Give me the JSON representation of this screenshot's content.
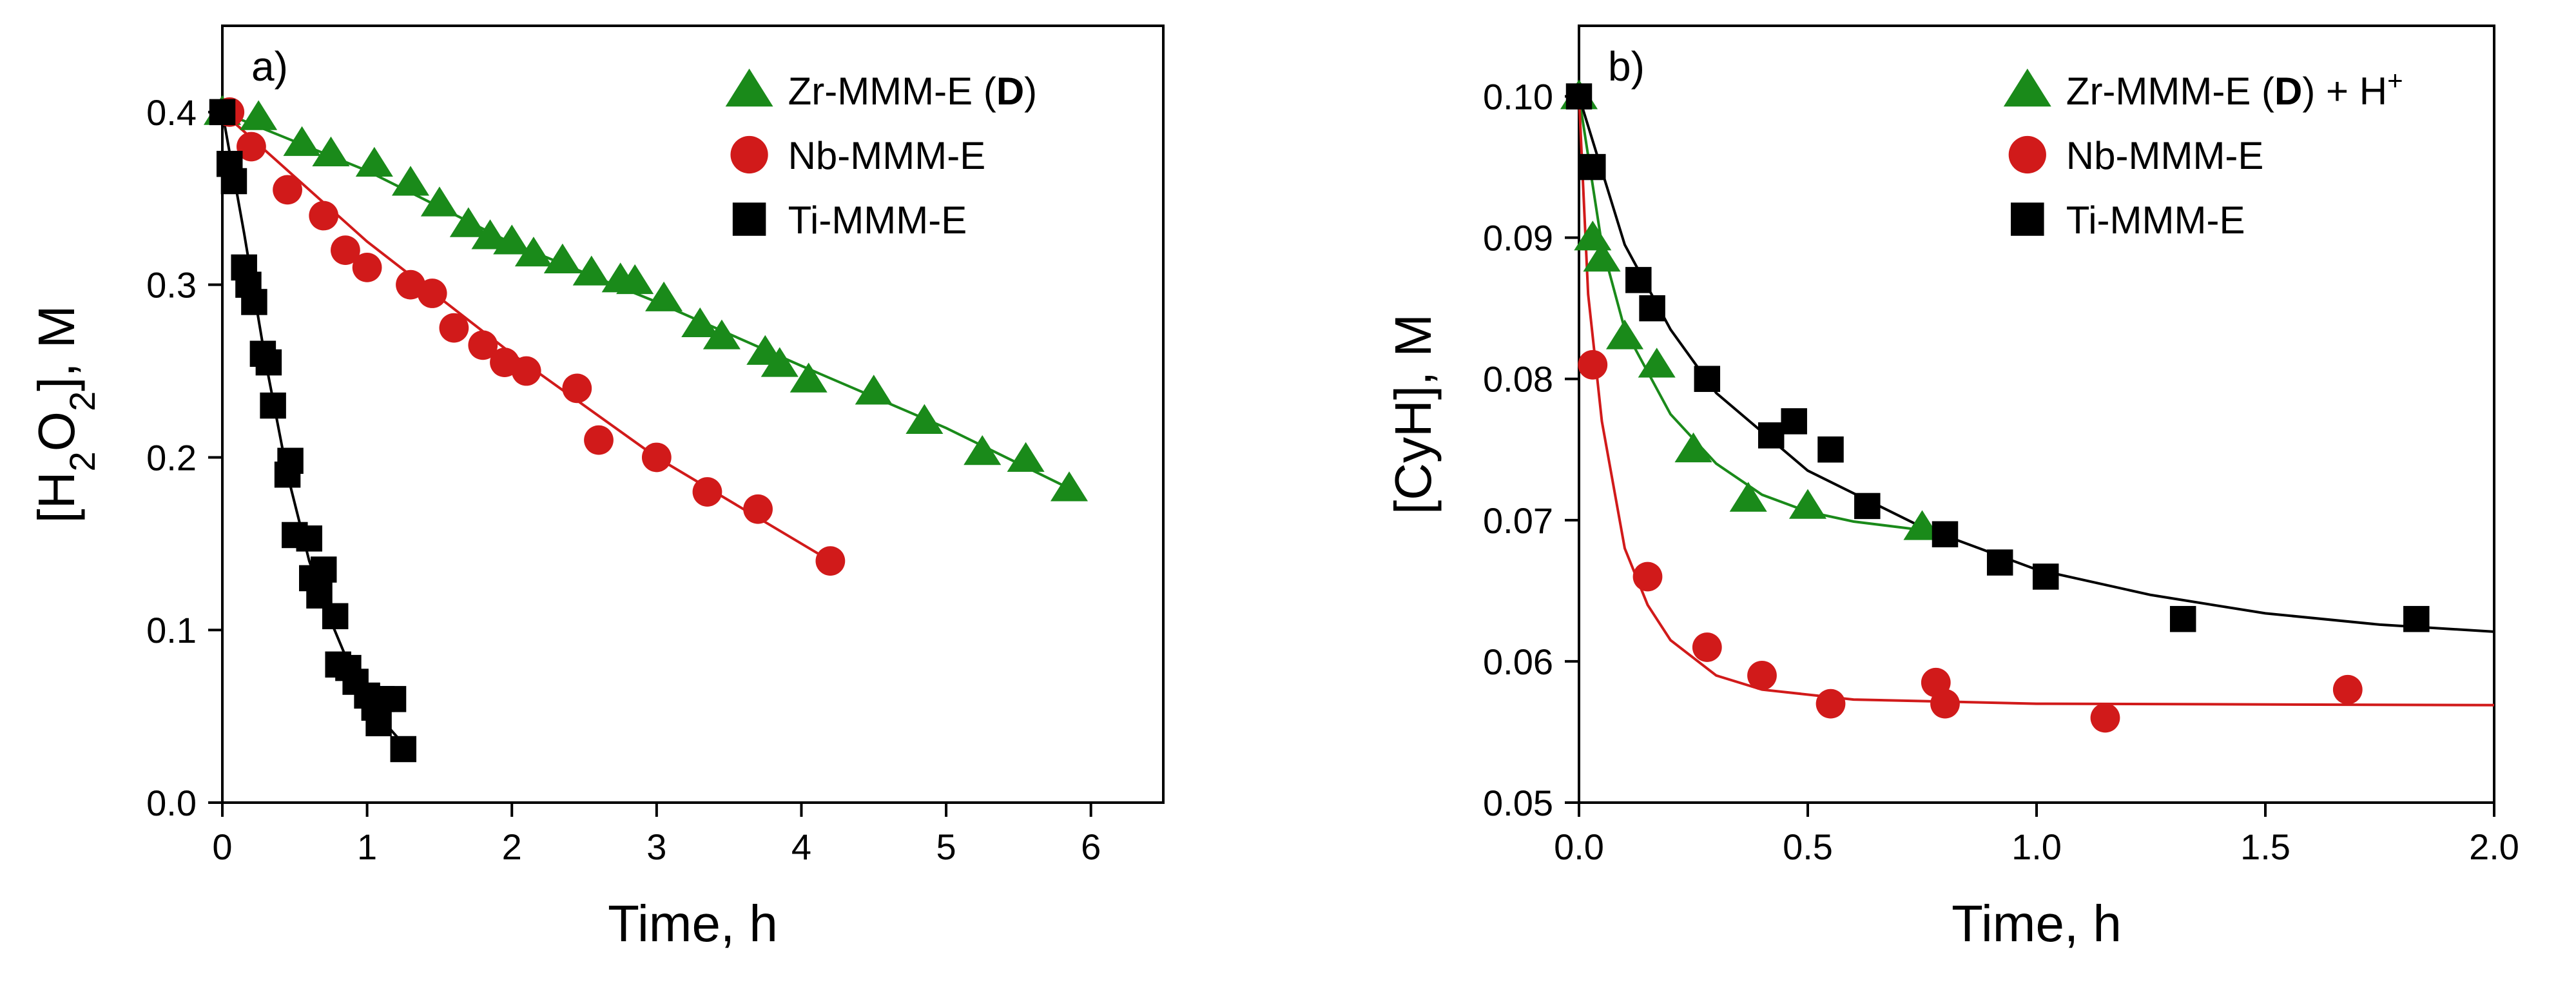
{
  "chart_data": [
    {
      "type": "scatter",
      "panel_label": "a)",
      "xlabel": "Time, h",
      "ylabel": "[H2O2], M",
      "xlim": [
        0,
        6.5
      ],
      "ylim": [
        0,
        0.45
      ],
      "xticks": [
        "0",
        "1",
        "2",
        "3",
        "4",
        "5",
        "6"
      ],
      "yticks": [
        "0.0",
        "0.1",
        "0.2",
        "0.3",
        "0.4"
      ],
      "legend_position": "top-right",
      "series": [
        {
          "name": "Zr-MMM-E (D)",
          "marker": "triangle",
          "color": "#1a8a1a",
          "points": [
            [
              0,
              0.4
            ],
            [
              0.25,
              0.397
            ],
            [
              0.55,
              0.382
            ],
            [
              0.75,
              0.376
            ],
            [
              1.05,
              0.37
            ],
            [
              1.3,
              0.359
            ],
            [
              1.5,
              0.347
            ],
            [
              1.7,
              0.335
            ],
            [
              1.85,
              0.328
            ],
            [
              2.0,
              0.325
            ],
            [
              2.15,
              0.318
            ],
            [
              2.35,
              0.314
            ],
            [
              2.55,
              0.307
            ],
            [
              2.75,
              0.303
            ],
            [
              2.85,
              0.302
            ],
            [
              3.05,
              0.292
            ],
            [
              3.3,
              0.277
            ],
            [
              3.45,
              0.27
            ],
            [
              3.75,
              0.261
            ],
            [
              3.85,
              0.254
            ],
            [
              4.05,
              0.245
            ],
            [
              4.5,
              0.238
            ],
            [
              4.85,
              0.221
            ],
            [
              5.25,
              0.203
            ],
            [
              5.55,
              0.199
            ],
            [
              5.85,
              0.182
            ]
          ],
          "fit": [
            [
              0,
              0.4
            ],
            [
              1,
              0.366
            ],
            [
              2,
              0.324
            ],
            [
              3,
              0.29
            ],
            [
              4,
              0.253
            ],
            [
              5,
              0.217
            ],
            [
              5.85,
              0.182
            ]
          ]
        },
        {
          "name": "Nb-MMM-E",
          "marker": "circle",
          "color": "#d11a1a",
          "points": [
            [
              0.05,
              0.4
            ],
            [
              0.2,
              0.38
            ],
            [
              0.45,
              0.355
            ],
            [
              0.7,
              0.34
            ],
            [
              0.85,
              0.32
            ],
            [
              1.0,
              0.31
            ],
            [
              1.3,
              0.3
            ],
            [
              1.45,
              0.295
            ],
            [
              1.6,
              0.275
            ],
            [
              1.8,
              0.265
            ],
            [
              1.95,
              0.255
            ],
            [
              2.1,
              0.25
            ],
            [
              2.45,
              0.24
            ],
            [
              2.6,
              0.21
            ],
            [
              3.0,
              0.2
            ],
            [
              3.35,
              0.18
            ],
            [
              3.7,
              0.17
            ],
            [
              4.2,
              0.14
            ]
          ],
          "fit": [
            [
              0,
              0.4
            ],
            [
              1,
              0.325
            ],
            [
              2,
              0.26
            ],
            [
              3,
              0.2
            ],
            [
              4,
              0.15
            ],
            [
              4.2,
              0.14
            ]
          ]
        },
        {
          "name": "Ti-MMM-E",
          "marker": "square",
          "color": "#000000",
          "points": [
            [
              0,
              0.4
            ],
            [
              0.05,
              0.37
            ],
            [
              0.08,
              0.36
            ],
            [
              0.15,
              0.31
            ],
            [
              0.18,
              0.3
            ],
            [
              0.22,
              0.29
            ],
            [
              0.28,
              0.26
            ],
            [
              0.32,
              0.255
            ],
            [
              0.35,
              0.23
            ],
            [
              0.45,
              0.19
            ],
            [
              0.47,
              0.198
            ],
            [
              0.5,
              0.155
            ],
            [
              0.6,
              0.153
            ],
            [
              0.62,
              0.13
            ],
            [
              0.67,
              0.12
            ],
            [
              0.7,
              0.135
            ],
            [
              0.78,
              0.108
            ],
            [
              0.8,
              0.08
            ],
            [
              0.87,
              0.078
            ],
            [
              0.92,
              0.07
            ],
            [
              1.0,
              0.062
            ],
            [
              1.05,
              0.055
            ],
            [
              1.1,
              0.06
            ],
            [
              1.08,
              0.046
            ],
            [
              1.18,
              0.06
            ],
            [
              1.25,
              0.031
            ]
          ],
          "fit": [
            [
              0,
              0.4
            ],
            [
              0.15,
              0.33
            ],
            [
              0.3,
              0.255
            ],
            [
              0.45,
              0.19
            ],
            [
              0.6,
              0.14
            ],
            [
              0.75,
              0.105
            ],
            [
              0.9,
              0.075
            ],
            [
              1.05,
              0.053
            ],
            [
              1.25,
              0.034
            ]
          ]
        }
      ]
    },
    {
      "type": "scatter",
      "panel_label": "b)",
      "xlabel": "Time, h",
      "ylabel": "[CyH], M",
      "xlim": [
        0,
        2.0
      ],
      "ylim": [
        0.05,
        0.105
      ],
      "xticks": [
        "0.0",
        "0.5",
        "1.0",
        "1.5",
        "2.0"
      ],
      "yticks": [
        "0.05",
        "0.06",
        "0.07",
        "0.08",
        "0.09",
        "0.10"
      ],
      "legend_position": "top-right",
      "series": [
        {
          "name": "Zr-MMM-E (D) + H+",
          "marker": "triangle",
          "color": "#1a8a1a",
          "points": [
            [
              0,
              0.1
            ],
            [
              0.03,
              0.09
            ],
            [
              0.05,
              0.0885
            ],
            [
              0.1,
              0.083
            ],
            [
              0.17,
              0.081
            ],
            [
              0.25,
              0.075
            ],
            [
              0.37,
              0.0715
            ],
            [
              0.5,
              0.071
            ],
            [
              0.75,
              0.0695
            ]
          ],
          "fit": [
            [
              0,
              0.1
            ],
            [
              0.05,
              0.0895
            ],
            [
              0.1,
              0.0835
            ],
            [
              0.2,
              0.0775
            ],
            [
              0.3,
              0.074
            ],
            [
              0.4,
              0.0718
            ],
            [
              0.5,
              0.0706
            ],
            [
              0.6,
              0.0699
            ],
            [
              0.75,
              0.0693
            ]
          ]
        },
        {
          "name": "Nb-MMM-E",
          "marker": "circle",
          "color": "#d11a1a",
          "points": [
            [
              0.03,
              0.081
            ],
            [
              0.15,
              0.066
            ],
            [
              0.28,
              0.061
            ],
            [
              0.4,
              0.059
            ],
            [
              0.55,
              0.057
            ],
            [
              0.78,
              0.0585
            ],
            [
              0.8,
              0.057
            ],
            [
              1.15,
              0.056
            ],
            [
              1.68,
              0.058
            ]
          ],
          "fit": [
            [
              0,
              0.1
            ],
            [
              0.02,
              0.086
            ],
            [
              0.05,
              0.077
            ],
            [
              0.1,
              0.068
            ],
            [
              0.15,
              0.064
            ],
            [
              0.2,
              0.0615
            ],
            [
              0.3,
              0.059
            ],
            [
              0.4,
              0.058
            ],
            [
              0.6,
              0.0573
            ],
            [
              1.0,
              0.057
            ],
            [
              2.0,
              0.0569
            ]
          ]
        },
        {
          "name": "Ti-MMM-E",
          "marker": "square",
          "color": "#000000",
          "points": [
            [
              0,
              0.1
            ],
            [
              0.03,
              0.095
            ],
            [
              0.13,
              0.087
            ],
            [
              0.16,
              0.085
            ],
            [
              0.28,
              0.08
            ],
            [
              0.42,
              0.076
            ],
            [
              0.47,
              0.077
            ],
            [
              0.55,
              0.075
            ],
            [
              0.63,
              0.071
            ],
            [
              0.8,
              0.069
            ],
            [
              0.92,
              0.067
            ],
            [
              1.02,
              0.066
            ],
            [
              1.32,
              0.063
            ],
            [
              1.83,
              0.063
            ]
          ],
          "fit": [
            [
              0,
              0.1
            ],
            [
              0.1,
              0.0895
            ],
            [
              0.2,
              0.0835
            ],
            [
              0.3,
              0.079
            ],
            [
              0.5,
              0.0735
            ],
            [
              0.75,
              0.0695
            ],
            [
              1.0,
              0.0665
            ],
            [
              1.25,
              0.0647
            ],
            [
              1.5,
              0.0634
            ],
            [
              1.75,
              0.0626
            ],
            [
              2.0,
              0.0621
            ]
          ]
        }
      ]
    }
  ]
}
